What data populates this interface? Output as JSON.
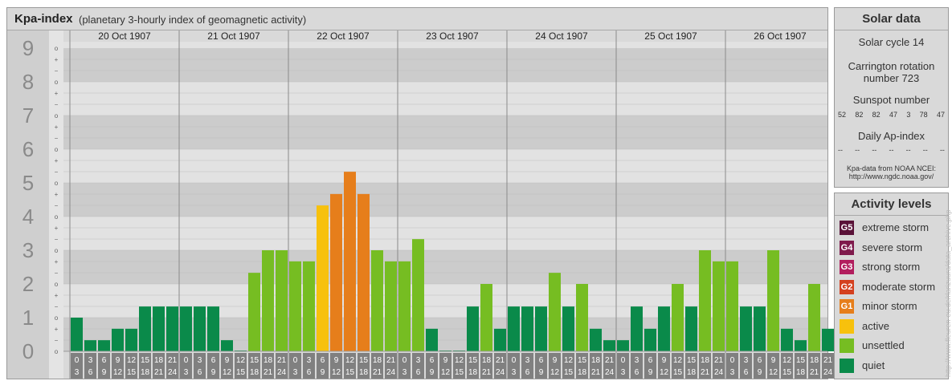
{
  "header": {
    "title": "Kpa-index",
    "subtitle": "(planetary 3-hourly index of geomagnetic activity)"
  },
  "chart_data": {
    "type": "bar",
    "y_ticks": [
      "0",
      "1",
      "2",
      "3",
      "4",
      "5",
      "6",
      "7",
      "8",
      "9"
    ],
    "sub_ticks": [
      "o",
      "−",
      "+",
      "o",
      "−",
      "+",
      "o",
      "−",
      "+",
      "o",
      "−",
      "+",
      "o",
      "−",
      "+",
      "o",
      "−",
      "+",
      "o",
      "−",
      "+",
      "o",
      "−",
      "+",
      "o",
      "−",
      "+",
      "o"
    ],
    "ylim": [
      0,
      9
    ],
    "days": [
      "20 Oct 1907",
      "21 Oct 1907",
      "22 Oct 1907",
      "23 Oct 1907",
      "24 Oct 1907",
      "25 Oct 1907",
      "26 Oct 1907"
    ],
    "interval_starts": [
      "0",
      "3",
      "6",
      "9",
      "12",
      "15",
      "18",
      "21"
    ],
    "interval_ends": [
      "3",
      "6",
      "9",
      "12",
      "15",
      "18",
      "21",
      "24"
    ],
    "values": [
      [
        1.0,
        0.33,
        0.33,
        0.67,
        0.67,
        1.33,
        1.33,
        1.33
      ],
      [
        1.33,
        1.33,
        1.33,
        0.33,
        0.0,
        2.33,
        3.0,
        3.0
      ],
      [
        2.67,
        2.67,
        4.33,
        4.67,
        5.33,
        4.67,
        3.0,
        2.67
      ],
      [
        2.67,
        3.33,
        0.67,
        0.0,
        0.0,
        1.33,
        2.0,
        0.67
      ],
      [
        1.33,
        1.33,
        1.33,
        2.33,
        1.33,
        2.0,
        0.67,
        0.33
      ],
      [
        0.33,
        1.33,
        0.67,
        1.33,
        2.0,
        1.33,
        3.0,
        2.67
      ],
      [
        2.67,
        1.33,
        1.33,
        3.0,
        0.67,
        0.33,
        2.0,
        0.67
      ]
    ],
    "colors": {
      "quiet": "#0a8a4a",
      "unsettled": "#76bd22",
      "active": "#f7c10d",
      "minor_storm": "#e67e1b"
    }
  },
  "solar": {
    "title": "Solar data",
    "solar_cycle": "Solar cycle 14",
    "carrington_1": "Carrington rotation",
    "carrington_2": "number 723",
    "sunspot_label": "Sunspot number",
    "sunspots": [
      "52",
      "82",
      "82",
      "47",
      "3",
      "78",
      "47"
    ],
    "ap_label": "Daily Ap-index",
    "ap_values": [
      "--",
      "--",
      "--",
      "--",
      "--",
      "--",
      "--"
    ],
    "source_1": "Kpa-data from NOAA NCEI:",
    "source_2": "http://www.ngdc.noaa.gov/"
  },
  "activity": {
    "title": "Activity levels",
    "levels": [
      {
        "badge": "G5",
        "label": "extreme storm",
        "color": "#5a1238"
      },
      {
        "badge": "G4",
        "label": "severe storm",
        "color": "#7f1a4c"
      },
      {
        "badge": "G3",
        "label": "strong storm",
        "color": "#b21e5e"
      },
      {
        "badge": "G2",
        "label": "moderate storm",
        "color": "#d4401f"
      },
      {
        "badge": "G1",
        "label": "minor storm",
        "color": "#e67e1b"
      },
      {
        "badge": "",
        "label": "active",
        "color": "#f7c10d"
      },
      {
        "badge": "",
        "label": "unsettled",
        "color": "#76bd22"
      },
      {
        "badge": "",
        "label": "quiet",
        "color": "#0a8a4a"
      }
    ]
  },
  "watermark": "http://www.fleuren-eu.de/rlarizuura/data_archive.php"
}
